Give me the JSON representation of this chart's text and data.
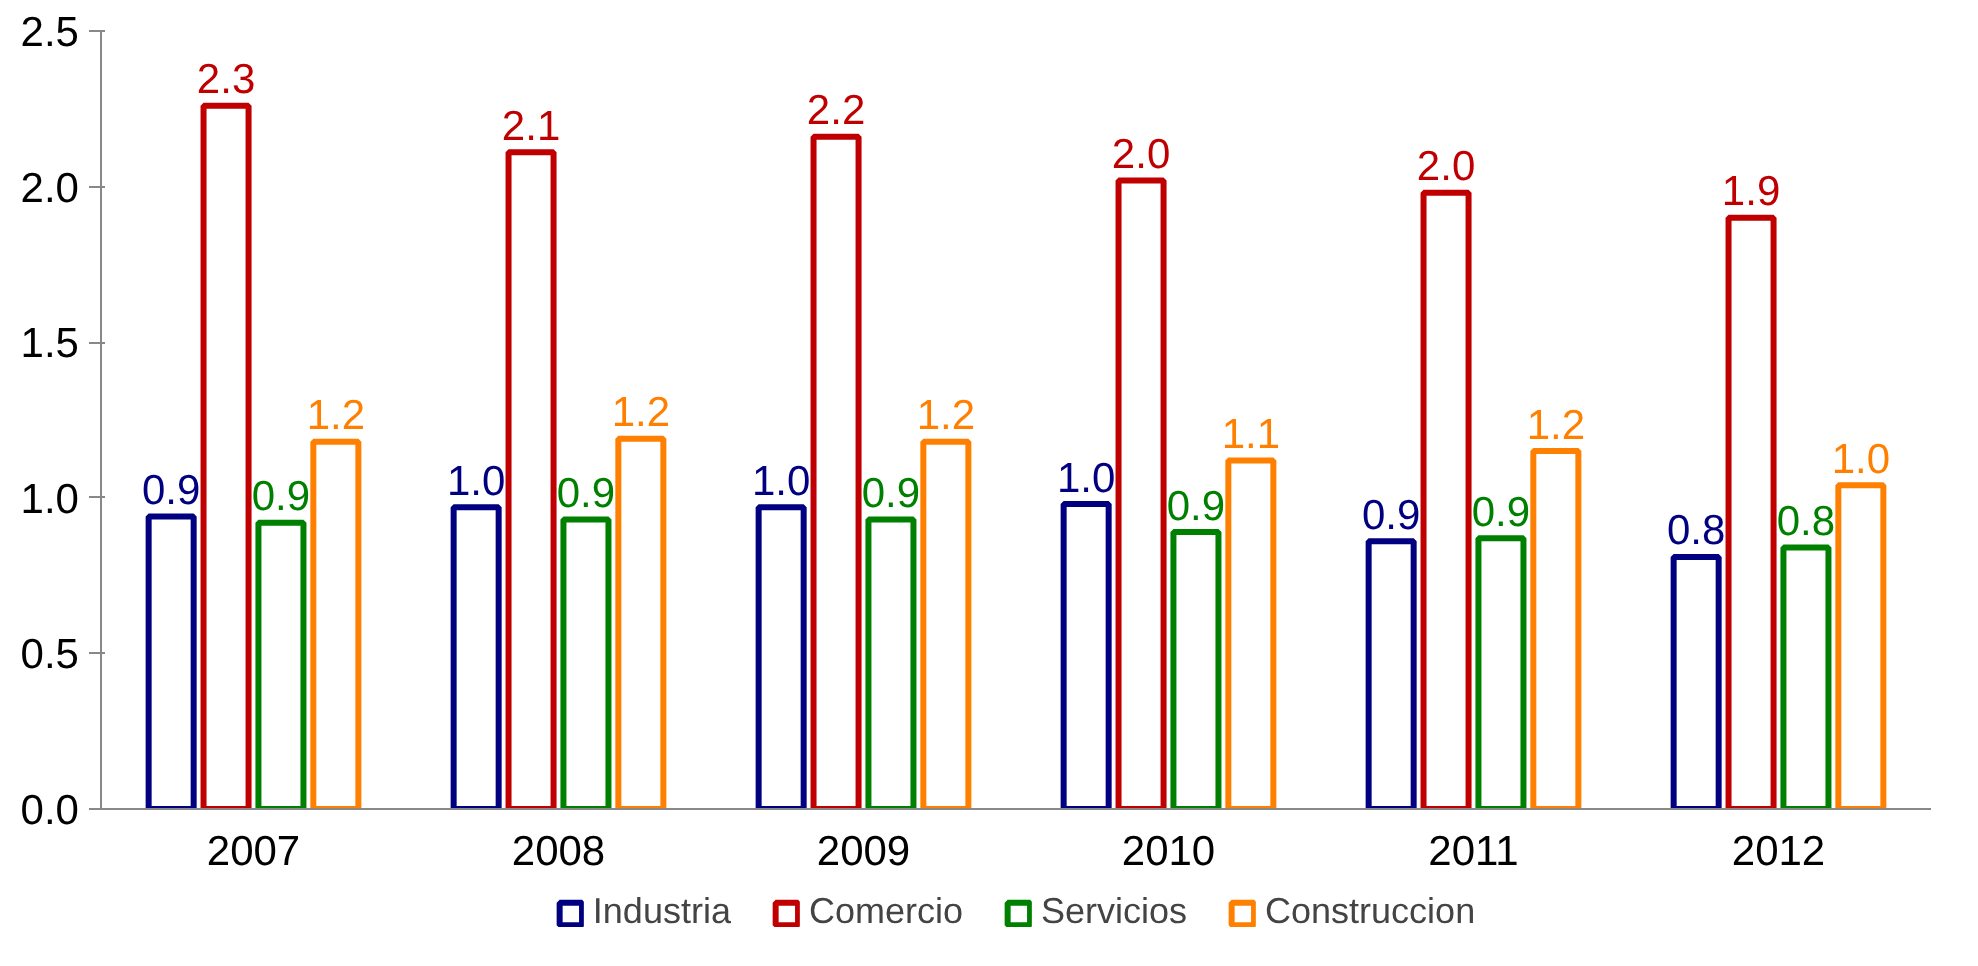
{
  "chart_data": {
    "type": "bar",
    "categories": [
      "2007",
      "2008",
      "2009",
      "2010",
      "2011",
      "2012"
    ],
    "series": [
      {
        "name": "Industria",
        "color": "#000080",
        "values": [
          0.94,
          0.97,
          0.97,
          0.98,
          0.86,
          0.81
        ],
        "value_labels": [
          "0.9",
          "1.0",
          "1.0",
          "1.0",
          "0.9",
          "0.8"
        ]
      },
      {
        "name": "Comercio",
        "color": "#c00000",
        "values": [
          2.26,
          2.11,
          2.16,
          2.02,
          1.98,
          1.9
        ],
        "value_labels": [
          "2.3",
          "2.1",
          "2.2",
          "2.0",
          "2.0",
          "1.9"
        ]
      },
      {
        "name": "Servicios",
        "color": "#008000",
        "values": [
          0.92,
          0.93,
          0.93,
          0.89,
          0.87,
          0.84
        ],
        "value_labels": [
          "0.9",
          "0.9",
          "0.9",
          "0.9",
          "0.9",
          "0.8"
        ]
      },
      {
        "name": "Construccion",
        "color": "#ff8000",
        "values": [
          1.18,
          1.19,
          1.18,
          1.12,
          1.15,
          1.04
        ],
        "value_labels": [
          "1.2",
          "1.2",
          "1.2",
          "1.1",
          "1.2",
          "1.0"
        ]
      }
    ],
    "ylim": [
      0,
      2.5
    ],
    "yticks": [
      {
        "value": 0,
        "label": "0.0"
      },
      {
        "value": 0.5,
        "label": "0.5"
      },
      {
        "value": 1,
        "label": "1.0"
      },
      {
        "value": 1.5,
        "label": "1.5"
      },
      {
        "value": 2,
        "label": "2.0"
      },
      {
        "value": 2.5,
        "label": "2.5"
      }
    ],
    "grid": false,
    "legend": "bottom"
  }
}
